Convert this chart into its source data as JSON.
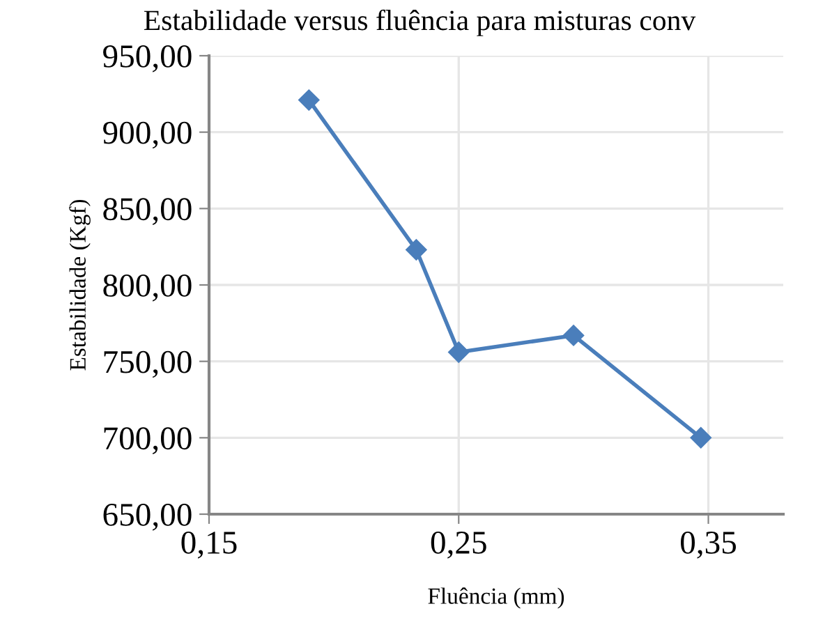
{
  "chart_data": {
    "type": "line",
    "title": "Estabilidade versus fluência para misturas conv",
    "xlabel": "Fluência (mm)",
    "ylabel": "Estabilidade (Kgf)",
    "x": [
      0.19,
      0.233,
      0.25,
      0.296,
      0.347
    ],
    "series": [
      {
        "color": "#4a7ebb",
        "values": [
          921,
          823,
          756,
          767,
          700
        ]
      }
    ],
    "xlim": [
      0.15,
      0.38
    ],
    "xticks": [
      {
        "value": 0.15,
        "label": "0,15"
      },
      {
        "value": 0.25,
        "label": "0,25"
      },
      {
        "value": 0.35,
        "label": "0,35"
      }
    ],
    "ylim": [
      650,
      950
    ],
    "yticks": [
      {
        "value": 650,
        "label": "650,00"
      },
      {
        "value": 700,
        "label": "700,00"
      },
      {
        "value": 750,
        "label": "750,00"
      },
      {
        "value": 800,
        "label": "800,00"
      },
      {
        "value": 850,
        "label": "850,00"
      },
      {
        "value": 900,
        "label": "900,00"
      },
      {
        "value": 950,
        "label": "950,00"
      }
    ],
    "grid": true,
    "marker": "diamond",
    "line_style": "solid",
    "legend": false
  }
}
